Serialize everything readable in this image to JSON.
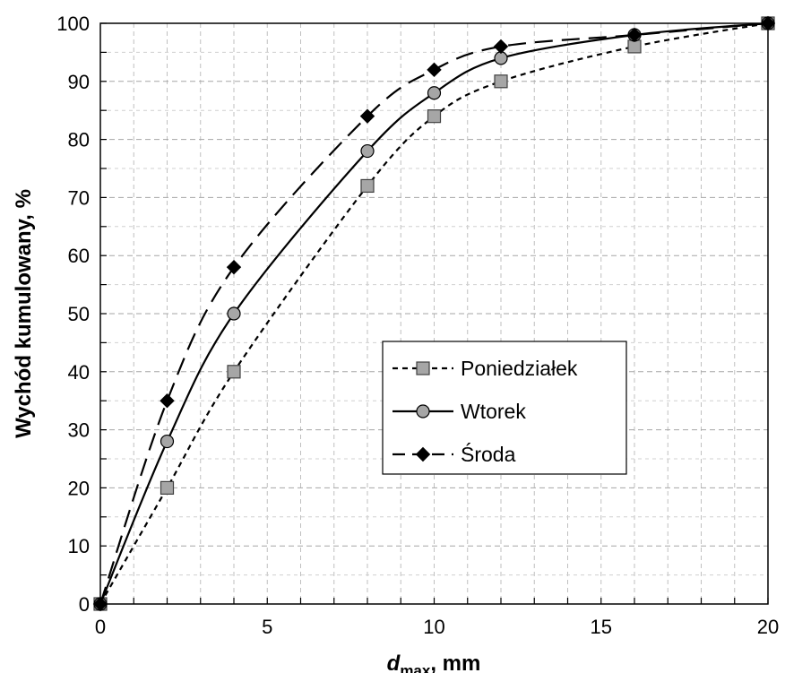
{
  "chart_data": {
    "type": "line",
    "xlabel": "d",
    "xlabel_subscript": "max",
    "xlabel_unit": ", mm",
    "ylabel": "Wychód kumulowany, %",
    "xlim": [
      0,
      20
    ],
    "ylim": [
      0,
      100
    ],
    "xticks": [
      0,
      5,
      10,
      15,
      20
    ],
    "yticks": [
      0,
      10,
      20,
      30,
      40,
      50,
      60,
      70,
      80,
      90,
      100
    ],
    "x_minor_step": 1,
    "y_minor_step": 5,
    "grid": true,
    "legend_position": "center-right",
    "series": [
      {
        "name": "Poniedziałek",
        "line_style": "dotted",
        "marker": "square",
        "marker_color": "#a6a6a6",
        "x": [
          0,
          2,
          4,
          8,
          10,
          12,
          16,
          20
        ],
        "y": [
          0,
          20,
          40,
          72,
          84,
          90,
          96,
          100
        ]
      },
      {
        "name": "Wtorek",
        "line_style": "solid",
        "marker": "circle",
        "marker_color": "#a6a6a6",
        "x": [
          0,
          2,
          4,
          8,
          10,
          12,
          16,
          20
        ],
        "y": [
          0,
          28,
          50,
          78,
          88,
          94,
          98,
          100
        ]
      },
      {
        "name": "Środa",
        "line_style": "dashed",
        "marker": "diamond",
        "marker_color": "#000000",
        "x": [
          0,
          2,
          4,
          8,
          10,
          12,
          16,
          20
        ],
        "y": [
          0,
          35,
          58,
          84,
          92,
          96,
          98,
          100
        ]
      }
    ]
  }
}
